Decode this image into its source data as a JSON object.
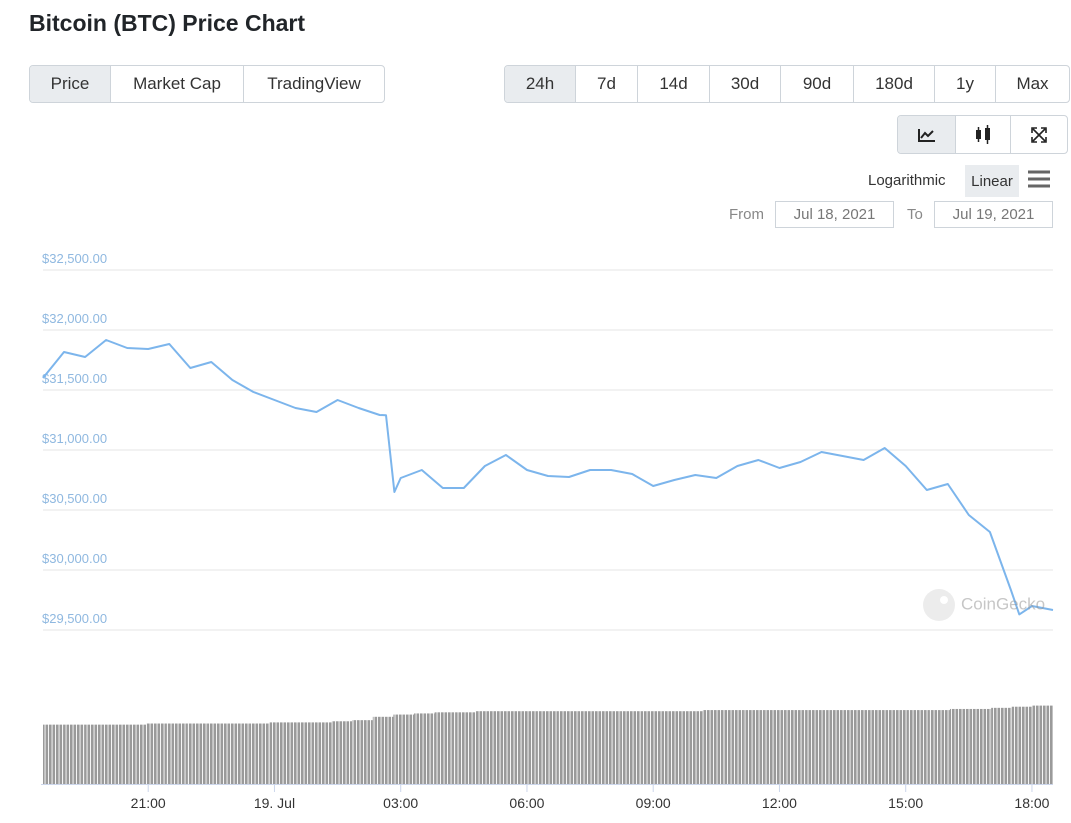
{
  "header": {
    "title": "Bitcoin (BTC) Price Chart"
  },
  "tabs": [
    "Price",
    "Market Cap",
    "TradingView"
  ],
  "ranges": [
    "24h",
    "7d",
    "14d",
    "30d",
    "90d",
    "180d",
    "1y",
    "Max"
  ],
  "scale_options": [
    "Logarithmic",
    "Linear"
  ],
  "date_range": {
    "from_label": "From",
    "from": "Jul 18, 2021",
    "to_label": "To",
    "to": "Jul 19, 2021"
  },
  "watermark": "CoinGecko",
  "chart_data": {
    "type": "line",
    "color": "#7cb5ec",
    "grid": true,
    "x": [
      -5.5,
      -5,
      -4.5,
      -4,
      -3.5,
      -3,
      -2.5,
      -2,
      -1.5,
      -1,
      -0.5,
      0,
      0.5,
      1,
      1.5,
      2,
      2.5,
      2.65,
      2.85,
      3,
      3.5,
      4,
      4.5,
      5,
      5.5,
      6,
      6.5,
      7,
      7.5,
      8,
      8.5,
      9,
      9.5,
      10,
      10.5,
      11,
      11.5,
      12,
      12.5,
      13,
      13.5,
      14,
      14.5,
      15,
      15.5,
      16,
      16.5,
      17,
      17.5,
      17.7,
      18,
      18.5
    ],
    "values": [
      31600,
      31817,
      31775,
      31917,
      31850,
      31842,
      31883,
      31683,
      31733,
      31583,
      31483,
      31417,
      31350,
      31317,
      31417,
      31350,
      31292,
      31290,
      30650,
      30767,
      30833,
      30683,
      30683,
      30867,
      30958,
      30833,
      30783,
      30775,
      30833,
      30833,
      30800,
      30700,
      30750,
      30792,
      30767,
      30867,
      30917,
      30850,
      30900,
      30983,
      30950,
      30917,
      31017,
      30867,
      30667,
      30717,
      30458,
      30317,
      29833,
      29630,
      29700,
      29667
    ],
    "xlim": [
      -5.5,
      18.5
    ],
    "xticks": [
      {
        "value": -3,
        "label": "21:00"
      },
      {
        "value": 0,
        "label": "19. Jul"
      },
      {
        "value": 3,
        "label": "03:00"
      },
      {
        "value": 6,
        "label": "06:00"
      },
      {
        "value": 9,
        "label": "09:00"
      },
      {
        "value": 12,
        "label": "12:00"
      },
      {
        "value": 15,
        "label": "15:00"
      },
      {
        "value": 18,
        "label": "18:00"
      }
    ],
    "ylim": [
      29500,
      32500
    ],
    "yticks": [
      {
        "value": 29500,
        "label": "$29,500.00"
      },
      {
        "value": 30000,
        "label": "$30,000.00"
      },
      {
        "value": 30500,
        "label": "$30,500.00"
      },
      {
        "value": 31000,
        "label": "$31,000.00"
      },
      {
        "value": 31500,
        "label": "$31,500.00"
      },
      {
        "value": 32000,
        "label": "$32,000.00"
      },
      {
        "value": 32500,
        "label": "$32,500.00"
      }
    ],
    "volume": {
      "color": "#9a9a9a",
      "ylim": [
        0,
        75
      ],
      "values": [
        53,
        53,
        53,
        53,
        53,
        54,
        54,
        54,
        54,
        54,
        54,
        55,
        55,
        55,
        56,
        57,
        60,
        62,
        63,
        64,
        64,
        65,
        65,
        65,
        65,
        65,
        65,
        65,
        65,
        65,
        65,
        65,
        66,
        66,
        66,
        66,
        66,
        66,
        66,
        66,
        66,
        66,
        66,
        66,
        67,
        67,
        68,
        69,
        70
      ]
    }
  }
}
